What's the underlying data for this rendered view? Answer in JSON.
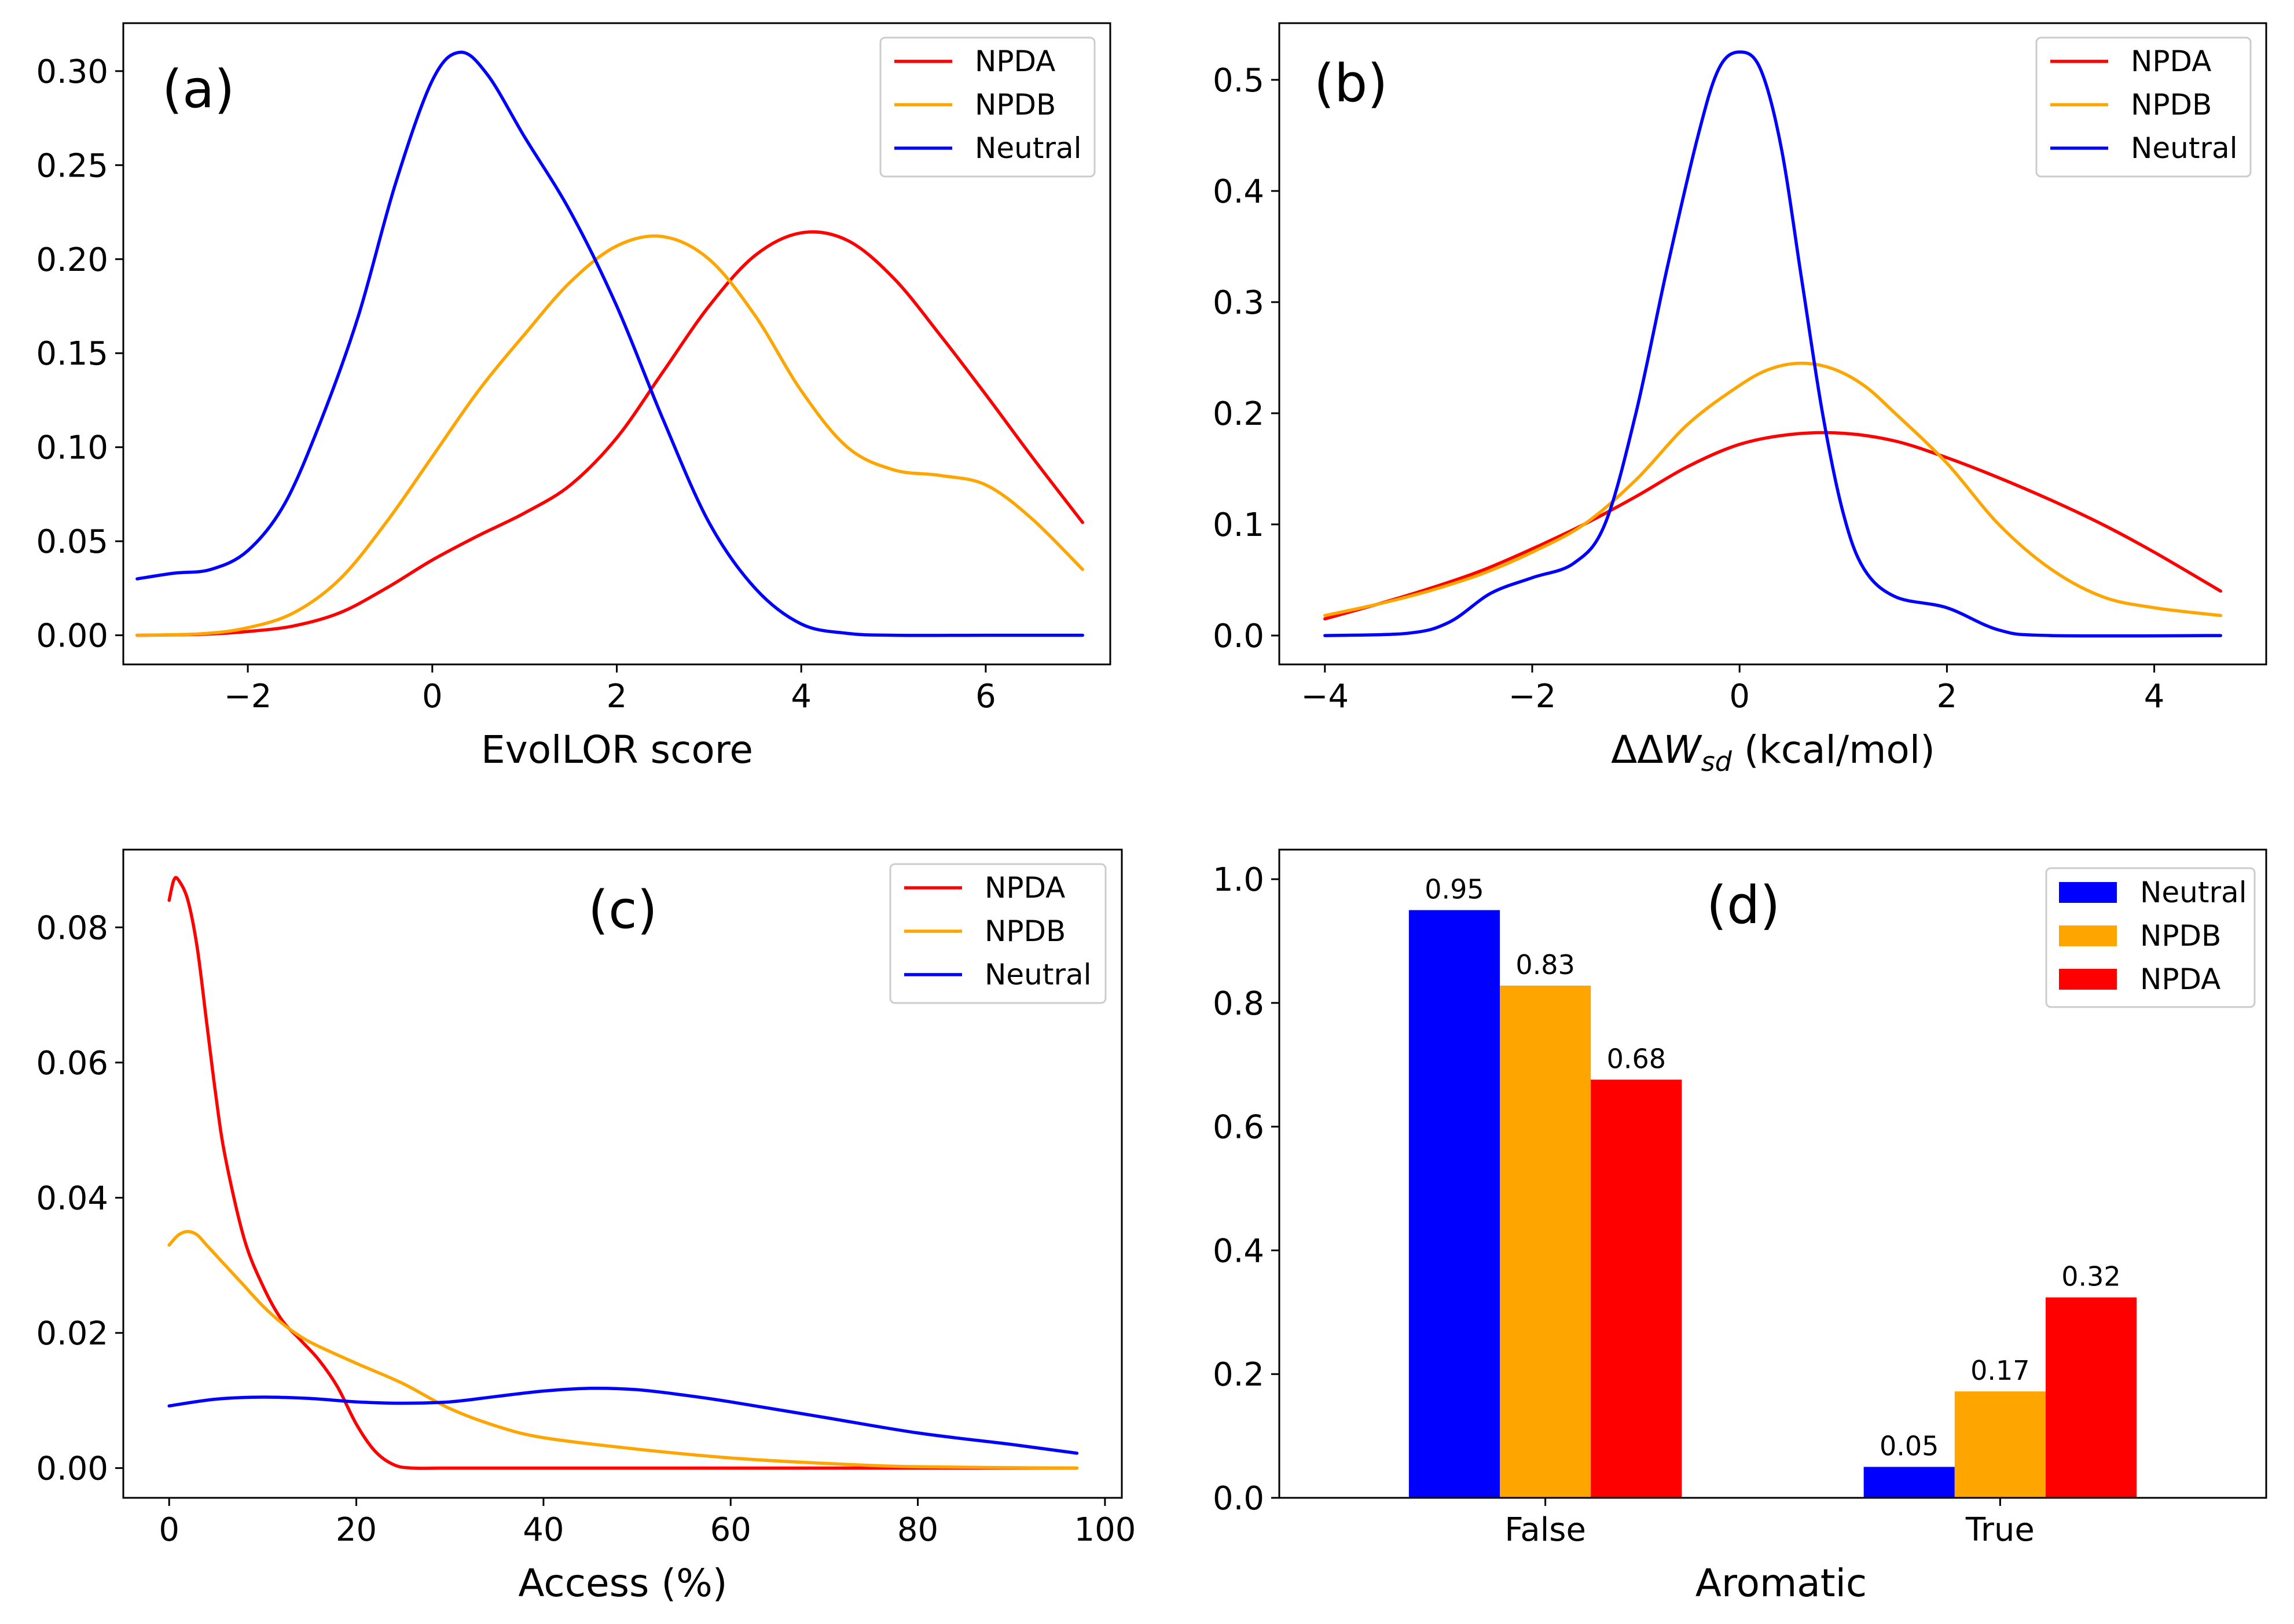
{
  "chart_data": [
    {
      "id": "a",
      "type": "line",
      "panel_tag": "(a)",
      "xlabel": "EvolLOR score",
      "ylabel": "",
      "xlim": [
        -3.35,
        7.35
      ],
      "ylim": [
        -0.0155,
        0.3255
      ],
      "xticks": [
        -2,
        0,
        2,
        4,
        6
      ],
      "xtick_labels": [
        "−2",
        "0",
        "2",
        "4",
        "6"
      ],
      "yticks": [
        0.0,
        0.05,
        0.1,
        0.15,
        0.2,
        0.25,
        0.3
      ],
      "ytick_labels": [
        "0.00",
        "0.05",
        "0.10",
        "0.15",
        "0.20",
        "0.25",
        "0.30"
      ],
      "legend": {
        "position": "top-right",
        "entries": [
          "NPDA",
          "NPDB",
          "Neutral"
        ]
      },
      "series": [
        {
          "name": "NPDA",
          "color": "#ff0000",
          "x": [
            -3.2,
            -2.5,
            -2,
            -1.5,
            -1,
            -0.5,
            0,
            0.5,
            1,
            1.5,
            2,
            2.5,
            3,
            3.5,
            4,
            4.5,
            5,
            5.5,
            6,
            6.5,
            7.05
          ],
          "y": [
            0.0,
            0.0005,
            0.002,
            0.005,
            0.012,
            0.025,
            0.04,
            0.053,
            0.065,
            0.08,
            0.105,
            0.14,
            0.175,
            0.202,
            0.214,
            0.21,
            0.19,
            0.16,
            0.128,
            0.095,
            0.06
          ]
        },
        {
          "name": "NPDB",
          "color": "#ffa500",
          "x": [
            -3.2,
            -2.5,
            -2,
            -1.5,
            -1,
            -0.5,
            0,
            0.5,
            1,
            1.5,
            2,
            2.5,
            3,
            3.5,
            4,
            4.5,
            5,
            5.5,
            6,
            6.5,
            7.05
          ],
          "y": [
            0.0,
            0.0008,
            0.004,
            0.012,
            0.03,
            0.06,
            0.095,
            0.13,
            0.16,
            0.188,
            0.207,
            0.212,
            0.2,
            0.17,
            0.13,
            0.1,
            0.088,
            0.085,
            0.08,
            0.062,
            0.035
          ]
        },
        {
          "name": "Neutral",
          "color": "#0000ff",
          "x": [
            -3.2,
            -2.8,
            -2.4,
            -2,
            -1.6,
            -1.2,
            -0.8,
            -0.4,
            0,
            0.3,
            0.6,
            1,
            1.5,
            2,
            2.5,
            3,
            3.5,
            4,
            4.5,
            5,
            6,
            7.05
          ],
          "y": [
            0.03,
            0.033,
            0.035,
            0.045,
            0.07,
            0.115,
            0.17,
            0.24,
            0.295,
            0.31,
            0.298,
            0.265,
            0.225,
            0.175,
            0.115,
            0.06,
            0.025,
            0.006,
            0.001,
            0.0,
            0.0,
            0.0
          ]
        }
      ]
    },
    {
      "id": "b",
      "type": "line",
      "panel_tag": "(b)",
      "xlabel_main": "ΔΔ",
      "xlabel_italic": "W",
      "xlabel_sub": "sd",
      "xlabel_unit": " (kcal/mol)",
      "ylabel": "",
      "xlim": [
        -4.44,
        5.08
      ],
      "ylim": [
        -0.026,
        0.551
      ],
      "xticks": [
        -4,
        -2,
        0,
        2,
        4
      ],
      "xtick_labels": [
        "−4",
        "−2",
        "0",
        "2",
        "4"
      ],
      "yticks": [
        0.0,
        0.1,
        0.2,
        0.3,
        0.4,
        0.5
      ],
      "ytick_labels": [
        "0.0",
        "0.1",
        "0.2",
        "0.3",
        "0.4",
        "0.5"
      ],
      "legend": {
        "position": "top-right",
        "entries": [
          "NPDA",
          "NPDB",
          "Neutral"
        ]
      },
      "series": [
        {
          "name": "NPDA",
          "color": "#ff0000",
          "x": [
            -4,
            -3.5,
            -3,
            -2.5,
            -2,
            -1.5,
            -1,
            -0.5,
            0,
            0.5,
            1,
            1.5,
            2,
            2.5,
            3,
            3.5,
            4,
            4.64
          ],
          "y": [
            0.015,
            0.028,
            0.042,
            0.058,
            0.078,
            0.1,
            0.125,
            0.152,
            0.172,
            0.181,
            0.182,
            0.175,
            0.16,
            0.142,
            0.122,
            0.1,
            0.075,
            0.04
          ]
        },
        {
          "name": "NPDB",
          "color": "#ffa500",
          "x": [
            -4,
            -3.5,
            -3,
            -2.5,
            -2,
            -1.5,
            -1,
            -0.5,
            0,
            0.3,
            0.6,
            0.9,
            1.2,
            1.5,
            2,
            2.5,
            3,
            3.5,
            4,
            4.64
          ],
          "y": [
            0.018,
            0.028,
            0.04,
            0.055,
            0.075,
            0.1,
            0.14,
            0.19,
            0.225,
            0.24,
            0.245,
            0.24,
            0.225,
            0.2,
            0.155,
            0.1,
            0.06,
            0.035,
            0.025,
            0.018
          ]
        },
        {
          "name": "Neutral",
          "color": "#0000ff",
          "x": [
            -4,
            -3.2,
            -2.8,
            -2.4,
            -2.0,
            -1.6,
            -1.3,
            -1.0,
            -0.7,
            -0.4,
            -0.2,
            0,
            0.2,
            0.4,
            0.6,
            0.8,
            1.0,
            1.2,
            1.5,
            2.0,
            2.5,
            3.0,
            4.64
          ],
          "y": [
            0.0,
            0.002,
            0.012,
            0.038,
            0.052,
            0.065,
            0.1,
            0.2,
            0.33,
            0.45,
            0.51,
            0.525,
            0.51,
            0.44,
            0.32,
            0.2,
            0.11,
            0.06,
            0.035,
            0.025,
            0.005,
            0.0,
            0.0
          ]
        }
      ]
    },
    {
      "id": "c",
      "type": "line",
      "panel_tag": "(c)",
      "xlabel": "Access (%)",
      "ylabel": "",
      "xlim": [
        -4.9,
        101.8
      ],
      "ylim": [
        -0.0044,
        0.0915
      ],
      "xticks": [
        0,
        20,
        40,
        60,
        80,
        100
      ],
      "xtick_labels": [
        "0",
        "20",
        "40",
        "60",
        "80",
        "100"
      ],
      "yticks": [
        0.0,
        0.02,
        0.04,
        0.06,
        0.08
      ],
      "ytick_labels": [
        "0.00",
        "0.02",
        "0.04",
        "0.06",
        "0.08"
      ],
      "legend": {
        "position": "top-right",
        "entries": [
          "NPDA",
          "NPDB",
          "Neutral"
        ]
      },
      "series": [
        {
          "name": "NPDA",
          "color": "#ff0000",
          "x": [
            0,
            0.5,
            1,
            2,
            3,
            4,
            5,
            6,
            8,
            10,
            12,
            14,
            16,
            18,
            20,
            22,
            24,
            26,
            30,
            40,
            60,
            97
          ],
          "y": [
            0.084,
            0.087,
            0.087,
            0.084,
            0.077,
            0.066,
            0.055,
            0.046,
            0.034,
            0.027,
            0.022,
            0.019,
            0.016,
            0.012,
            0.0065,
            0.0025,
            0.0005,
            0.0,
            0.0,
            0.0,
            0.0,
            0.0
          ]
        },
        {
          "name": "NPDB",
          "color": "#ffa500",
          "x": [
            0,
            1,
            2,
            3,
            4,
            6,
            8,
            10,
            12,
            14,
            16,
            20,
            25,
            30,
            35,
            40,
            50,
            60,
            70,
            80,
            97
          ],
          "y": [
            0.033,
            0.0345,
            0.035,
            0.0345,
            0.033,
            0.03,
            0.027,
            0.024,
            0.0215,
            0.0195,
            0.018,
            0.0155,
            0.0125,
            0.0088,
            0.0062,
            0.0045,
            0.0028,
            0.0015,
            0.0007,
            0.0002,
            0.0
          ]
        },
        {
          "name": "Neutral",
          "color": "#0000ff",
          "x": [
            0,
            5,
            10,
            15,
            20,
            25,
            30,
            35,
            40,
            45,
            50,
            55,
            60,
            70,
            80,
            90,
            97
          ],
          "y": [
            0.0092,
            0.0102,
            0.0105,
            0.0103,
            0.0098,
            0.0096,
            0.0098,
            0.0106,
            0.0114,
            0.0118,
            0.0116,
            0.0108,
            0.0098,
            0.0075,
            0.0052,
            0.0035,
            0.0022
          ]
        }
      ]
    },
    {
      "id": "d",
      "type": "bar",
      "panel_tag": "(d)",
      "xlabel": "Aromatic",
      "ylabel": "",
      "categories": [
        "False",
        "True"
      ],
      "ylim": [
        0,
        1.0478
      ],
      "yticks": [
        0.0,
        0.2,
        0.4,
        0.6,
        0.8,
        1.0
      ],
      "ytick_labels": [
        "0.0",
        "0.2",
        "0.4",
        "0.6",
        "0.8",
        "1.0"
      ],
      "legend": {
        "position": "top-right",
        "entries": [
          "Neutral",
          "NPDB",
          "NPDA"
        ]
      },
      "series": [
        {
          "name": "Neutral",
          "color": "#0000ff",
          "values": [
            0.95,
            0.05
          ],
          "labels": [
            "0.95",
            "0.05"
          ]
        },
        {
          "name": "NPDB",
          "color": "#ffa500",
          "values": [
            0.828,
            0.172
          ],
          "labels": [
            "0.83",
            "0.17"
          ]
        },
        {
          "name": "NPDA",
          "color": "#ff0000",
          "values": [
            0.676,
            0.324
          ],
          "labels": [
            "0.68",
            "0.32"
          ]
        }
      ]
    }
  ]
}
